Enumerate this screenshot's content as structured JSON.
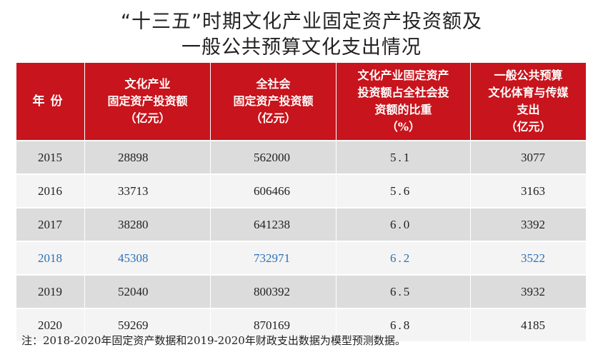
{
  "title": {
    "line1": "“十三五”时期文化产业固定资产投资额及",
    "line2": "一般公共预算文化支出情况"
  },
  "table": {
    "headers": [
      [
        "年份"
      ],
      [
        "文化产业",
        "固定资产投资额",
        "（亿元）"
      ],
      [
        "全社会",
        "固定资产投资额",
        "（亿元）"
      ],
      [
        "文化产业固定资产",
        "投资额占全社会投",
        "资额的比重",
        "（%）"
      ],
      [
        "一般公共预算",
        "文化体育与传媒",
        "支出",
        "（亿元）"
      ]
    ],
    "rows": [
      {
        "year": "2015",
        "culture_investment": "28898",
        "total_investment": "562000",
        "share": "5.1",
        "spending": "3077"
      },
      {
        "year": "2016",
        "culture_investment": "33713",
        "total_investment": "606466",
        "share": "5.6",
        "spending": "3163"
      },
      {
        "year": "2017",
        "culture_investment": "38280",
        "total_investment": "641238",
        "share": "6.0",
        "spending": "3392"
      },
      {
        "year": "2018",
        "culture_investment": "45308",
        "total_investment": "732971",
        "share": "6.2",
        "spending": "3522"
      },
      {
        "year": "2019",
        "culture_investment": "52040",
        "total_investment": "800392",
        "share": "6.5",
        "spending": "3932"
      },
      {
        "year": "2020",
        "culture_investment": "59269",
        "total_investment": "870169",
        "share": "6.8",
        "spending": "4185"
      }
    ],
    "highlight_row_color": "#2e6fb7",
    "header_color": "#c8141c"
  },
  "note": "注：2018-2020年固定资产数据和2019-2020年财政支出数据为模型预测数据。"
}
